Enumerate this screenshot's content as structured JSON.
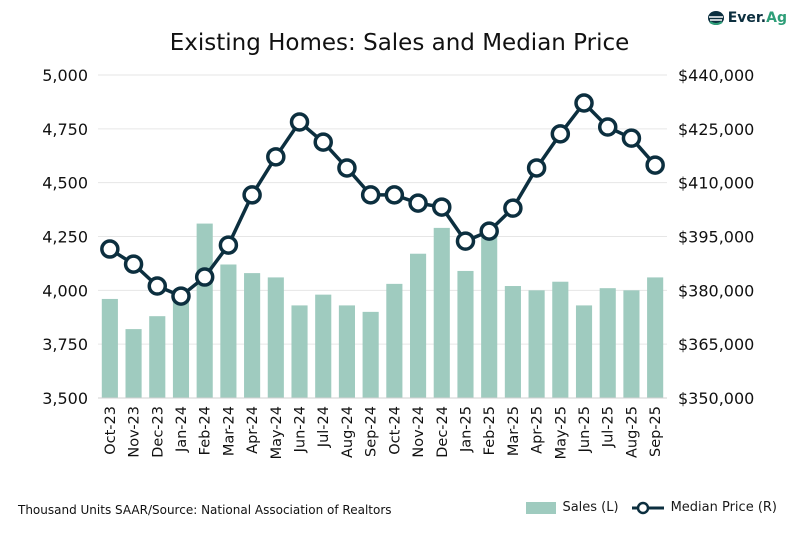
{
  "logo": {
    "text_a": "Ever.",
    "text_b": "Ag"
  },
  "footer": "Thousand Units SAAR/Source: National Association of Realtors",
  "chart_data": {
    "type": "bar+line",
    "title": "Existing Homes: Sales and Median Price",
    "categories": [
      "Oct-23",
      "Nov-23",
      "Dec-23",
      "Jan-24",
      "Feb-24",
      "Mar-24",
      "Apr-24",
      "May-24",
      "Jun-24",
      "Jul-24",
      "Aug-24",
      "Sep-24",
      "Oct-24",
      "Nov-24",
      "Dec-24",
      "Jan-25",
      "Feb-25",
      "Mar-25",
      "Apr-25",
      "May-25",
      "Jun-25",
      "Jul-25",
      "Aug-25",
      "Sep-25"
    ],
    "series": [
      {
        "name": "Sales (L)",
        "type": "bar",
        "axis": "left",
        "color": "#9fcbbf",
        "values": [
          3960,
          3820,
          3880,
          4000,
          4310,
          4120,
          4080,
          4060,
          3930,
          3980,
          3930,
          3900,
          4030,
          4170,
          4290,
          4090,
          4260,
          4020,
          4000,
          4040,
          3930,
          4010,
          4000,
          4060
        ]
      },
      {
        "name": "Median Price (R)",
        "type": "line",
        "axis": "right",
        "color": "#0c2f3f",
        "values": [
          391500,
          387300,
          381200,
          378400,
          383700,
          392600,
          406600,
          417200,
          426900,
          421300,
          414100,
          406600,
          406600,
          404300,
          403200,
          393700,
          396500,
          402900,
          414100,
          423600,
          432200,
          425500,
          422400,
          414900
        ]
      }
    ],
    "left_axis": {
      "ylim": [
        3500,
        5000
      ],
      "ticks": [
        "3,500",
        "3,750",
        "4,000",
        "4,250",
        "4,500",
        "4,750",
        "5,000"
      ]
    },
    "right_axis": {
      "ylim": [
        350000,
        440000
      ],
      "ticks": [
        "$350,000",
        "$365,000",
        "$380,000",
        "$395,000",
        "$410,000",
        "$425,000",
        "$440,000"
      ]
    },
    "grid": true,
    "legend": "bottom-right"
  }
}
